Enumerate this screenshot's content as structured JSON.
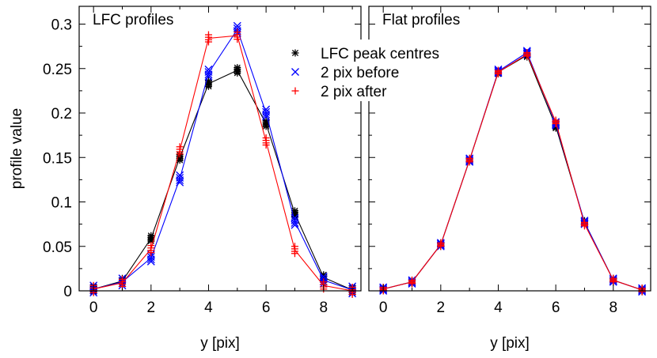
{
  "chart_data": [
    {
      "type": "line",
      "title": "LFC profiles",
      "xlabel": "y [pix]",
      "ylabel": "profile value",
      "xlim": [
        -0.5,
        9.3
      ],
      "ylim": [
        0,
        0.32
      ],
      "xticks": [
        0,
        2,
        4,
        6,
        8
      ],
      "yticks": [
        0,
        0.05,
        0.1,
        0.15,
        0.2,
        0.25,
        0.3
      ],
      "ytick_labels": [
        "0",
        "0.05",
        "0.1",
        "0.15",
        "0.2",
        "0.25",
        "0.3"
      ],
      "legend": "top-right",
      "x": [
        0,
        1,
        2,
        3,
        4,
        5,
        6,
        7,
        8,
        9
      ],
      "series": [
        {
          "name": "LFC peak centres",
          "marker": "asterisk",
          "color": "#000000",
          "values": [
            0.002,
            0.011,
            0.059,
            0.15,
            0.233,
            0.248,
            0.188,
            0.087,
            0.015,
            0.001
          ],
          "spread": 0.003
        },
        {
          "name": "2 pix before",
          "marker": "x",
          "color": "#0000ff",
          "values": [
            0.002,
            0.01,
            0.037,
            0.126,
            0.245,
            0.294,
            0.2,
            0.078,
            0.012,
            0.001
          ],
          "spread": 0.004
        },
        {
          "name": "2 pix after",
          "marker": "plus",
          "color": "#ff0000",
          "values": [
            0.002,
            0.009,
            0.047,
            0.158,
            0.284,
            0.287,
            0.168,
            0.046,
            0.006,
            0.0
          ],
          "spread": 0.004
        }
      ]
    },
    {
      "type": "line",
      "title": "Flat profiles",
      "xlabel": "y [pix]",
      "xlim": [
        -0.5,
        9.3
      ],
      "ylim": [
        0,
        0.32
      ],
      "xticks": [
        0,
        2,
        4,
        6,
        8
      ],
      "x": [
        0,
        1,
        2,
        3,
        4,
        5,
        6,
        7,
        8,
        9
      ],
      "series": [
        {
          "name": "LFC peak centres",
          "marker": "asterisk",
          "color": "#000000",
          "values": [
            0.002,
            0.01,
            0.052,
            0.147,
            0.246,
            0.265,
            0.185,
            0.077,
            0.012,
            0.001
          ],
          "spread": 0.002
        },
        {
          "name": "2 pix before",
          "marker": "x",
          "color": "#0000ff",
          "values": [
            0.002,
            0.01,
            0.052,
            0.147,
            0.247,
            0.268,
            0.188,
            0.077,
            0.012,
            0.001
          ],
          "spread": 0.002
        },
        {
          "name": "2 pix after",
          "marker": "plus",
          "color": "#ff0000",
          "values": [
            0.002,
            0.01,
            0.052,
            0.147,
            0.246,
            0.266,
            0.19,
            0.075,
            0.012,
            0.001
          ],
          "spread": 0.002
        }
      ]
    }
  ]
}
